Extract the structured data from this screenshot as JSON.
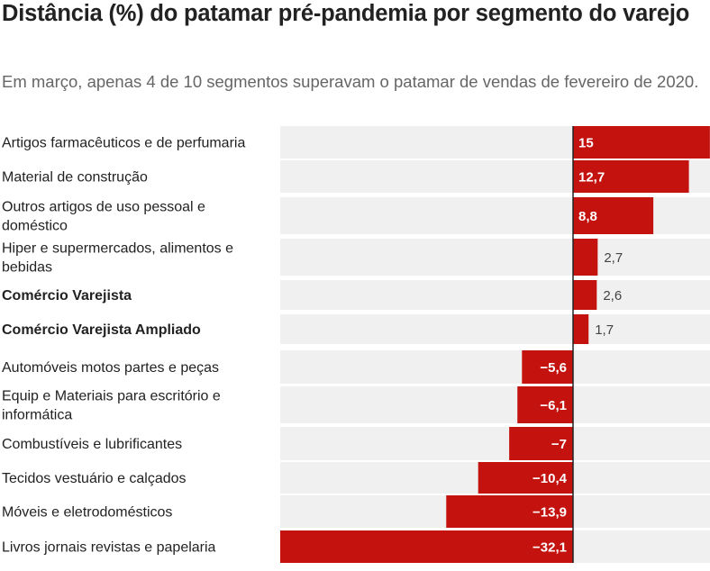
{
  "title": "Distância (%) do patamar pré-pandemia por segmento do varejo",
  "subtitle": "Em março, apenas 4 de 10 segmentos superavam o patamar de vendas de fevereiro de 2020.",
  "colors": {
    "bar": "#c4120e",
    "row_background": "#f0f0f0",
    "zero_line": "#222222"
  },
  "chart_data": {
    "type": "bar",
    "orientation": "horizontal",
    "categories": [
      "Artigos farmacêuticos e de perfumaria",
      "Material de construção",
      "Outros artigos de uso pessoal e doméstico",
      "Hiper e supermercados, alimentos e bebidas",
      "Comércio Varejista",
      "Comércio Varejista Ampliado",
      "Automóveis motos partes e peças",
      "Equip e Materiais para escritório e informática",
      "Combustíveis e lubrificantes",
      "Tecidos vestuário e calçados",
      "Móveis e eletrodomésticos",
      "Livros jornais revistas e papelaria"
    ],
    "category_lines": [
      [
        "Artigos farmacêuticos e de perfumaria"
      ],
      [
        "Material de construção"
      ],
      [
        "Outros artigos de uso pessoal e",
        "doméstico"
      ],
      [
        "Hiper e supermercados, alimentos e",
        "bebidas"
      ],
      [
        "Comércio Varejista"
      ],
      [
        "Comércio Varejista Ampliado"
      ],
      [
        "Automóveis motos partes e peças"
      ],
      [
        "Equip e Materiais para escritório e",
        "informática"
      ],
      [
        "Combustíveis e lubrificantes"
      ],
      [
        "Tecidos vestuário e calçados"
      ],
      [
        "Móveis e eletrodomésticos"
      ],
      [
        "Livros jornais revistas e papelaria"
      ]
    ],
    "bold_categories": [
      "Comércio Varejista",
      "Comércio Varejista Ampliado"
    ],
    "values": [
      15,
      12.7,
      8.8,
      2.7,
      2.6,
      1.7,
      -5.6,
      -6.1,
      -7,
      -10.4,
      -13.9,
      -32.1
    ],
    "value_labels": [
      "15",
      "12,7",
      "8,8",
      "2,7",
      "2,6",
      "1,7",
      "−5,6",
      "−6,1",
      "−7",
      "−10,4",
      "−13,9",
      "−32,1"
    ],
    "xlim": [
      -32.1,
      15
    ],
    "grid": false,
    "legend": "none"
  }
}
